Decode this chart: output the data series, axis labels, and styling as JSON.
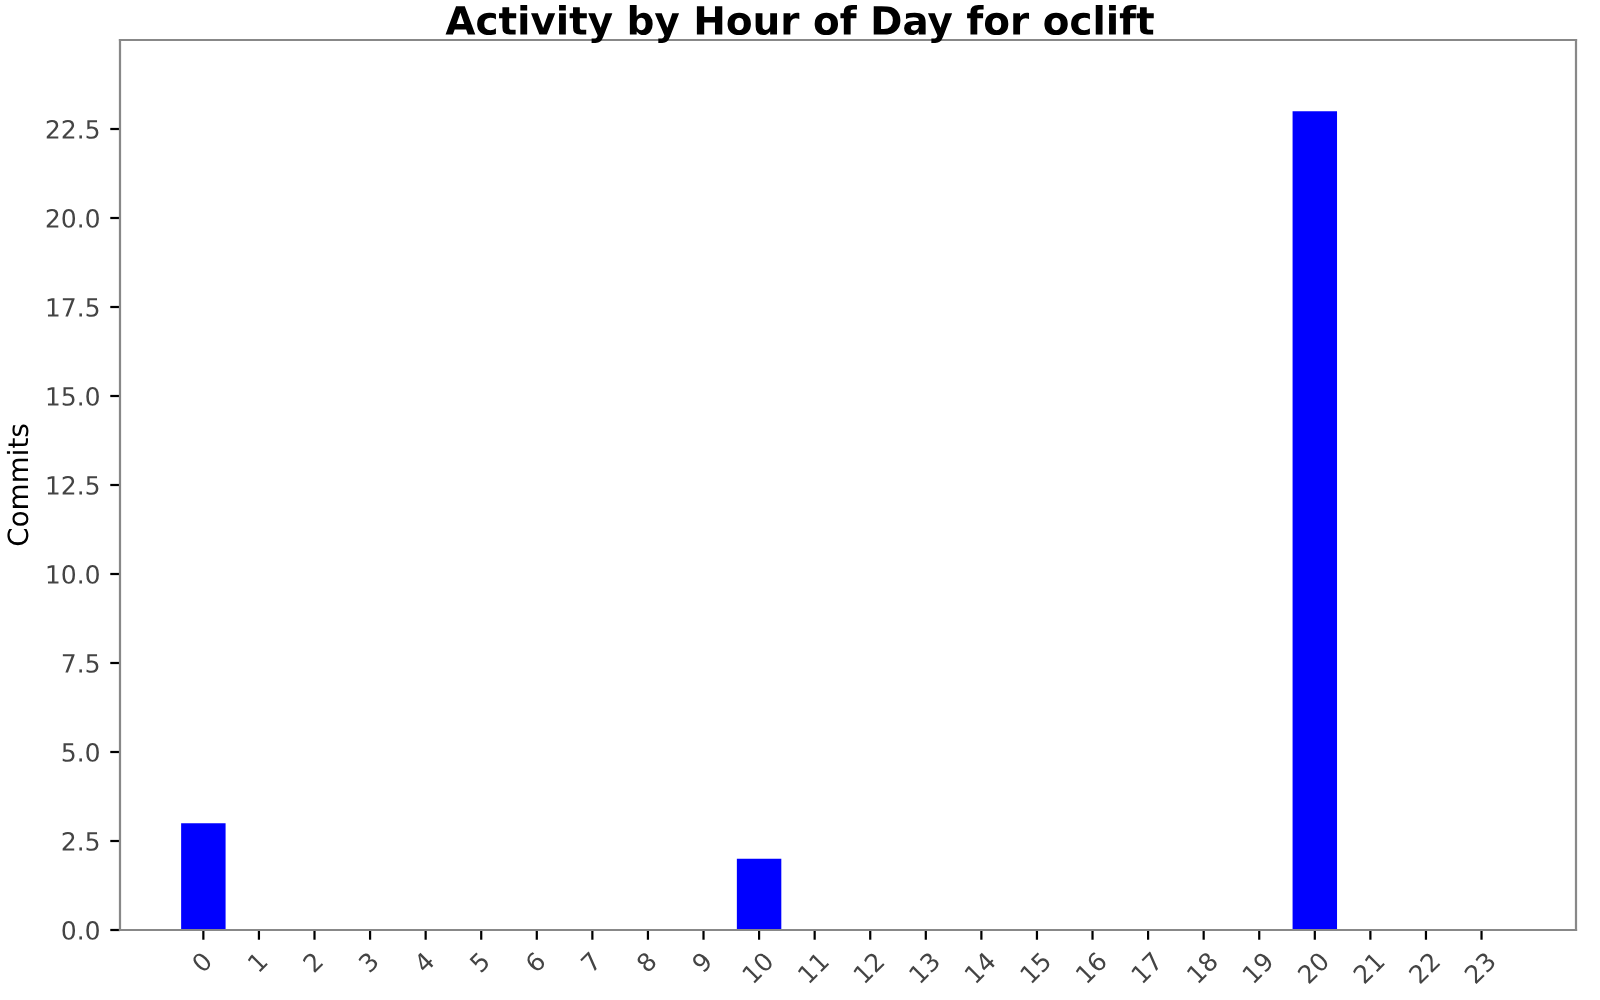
{
  "chart_data": {
    "type": "bar",
    "title": "Activity by Hour of Day for oclift",
    "ylabel": "Commits",
    "categories": [
      "0",
      "1",
      "2",
      "3",
      "4",
      "5",
      "6",
      "7",
      "8",
      "9",
      "10",
      "11",
      "12",
      "13",
      "14",
      "15",
      "16",
      "17",
      "18",
      "19",
      "20",
      "21",
      "22",
      "23"
    ],
    "values": [
      3,
      0,
      0,
      0,
      0,
      0,
      0,
      0,
      0,
      0,
      2,
      0,
      0,
      0,
      0,
      0,
      0,
      0,
      0,
      0,
      23,
      0,
      0,
      0
    ],
    "color": "#0000ff",
    "ylim": [
      0,
      25
    ],
    "yticks": [
      {
        "value": 0,
        "label": "0.0"
      },
      {
        "value": 2.5,
        "label": "2.5"
      },
      {
        "value": 5,
        "label": "5.0"
      },
      {
        "value": 7.5,
        "label": "7.5"
      },
      {
        "value": 10,
        "label": "10.0"
      },
      {
        "value": 12.5,
        "label": "12.5"
      },
      {
        "value": 15,
        "label": "15.0"
      },
      {
        "value": 17.5,
        "label": "17.5"
      },
      {
        "value": 20,
        "label": "20.0"
      },
      {
        "value": 22.5,
        "label": "22.5"
      }
    ],
    "grid": false
  }
}
